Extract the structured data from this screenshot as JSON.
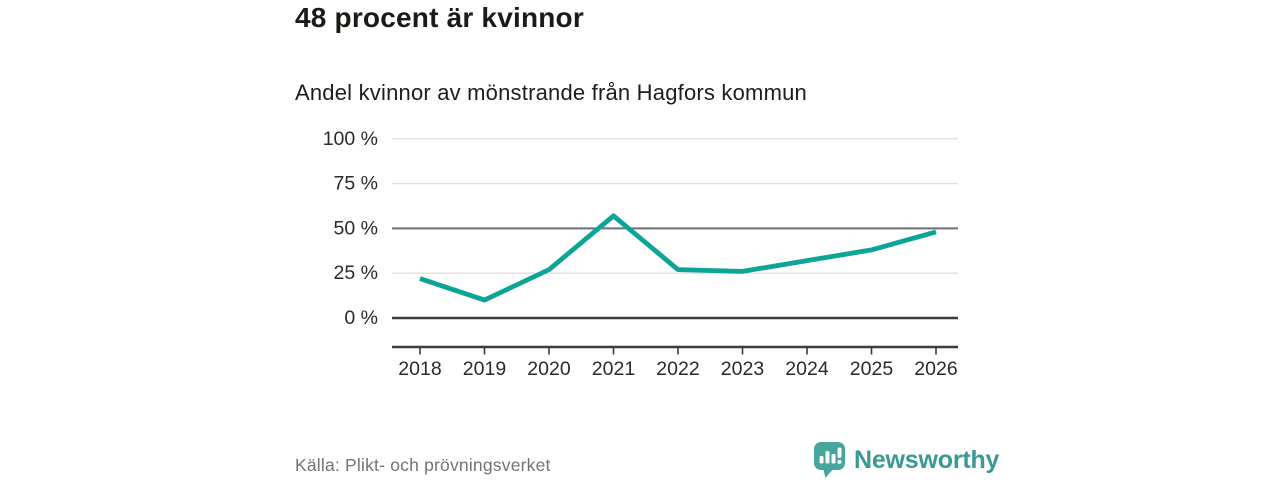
{
  "header": {
    "title": "48 procent är kvinnor",
    "subtitle": "Andel kvinnor av mönstrande från Hagfors kommun"
  },
  "chart_data": {
    "type": "line",
    "title": "48 procent är kvinnor",
    "subtitle": "Andel kvinnor av mönstrande från Hagfors kommun",
    "x": [
      "2018",
      "2019",
      "2020",
      "2021",
      "2022",
      "2023",
      "2024",
      "2025",
      "2026"
    ],
    "series": [
      {
        "name": "Andel kvinnor av mönstrande",
        "values": [
          22,
          10,
          27,
          57,
          27,
          26,
          32,
          38,
          48
        ],
        "color": "#0da498"
      }
    ],
    "unit": "%",
    "ylim": [
      0,
      100
    ],
    "yticks": [
      0,
      25,
      50,
      75,
      100
    ],
    "ytick_suffix": " %",
    "grid": true,
    "legend": "none",
    "emphasized_gridline": 50,
    "baseline_value": 0,
    "colors": {
      "grid_light": "#e0e0e0",
      "grid_emphasis": "#6f6f78",
      "baseline": "#3b3b40",
      "axis": "#3b3b40",
      "tick_label": "#2a2a2a"
    }
  },
  "footer": {
    "source": "Källa: Plikt- och prövningsverket",
    "logo": {
      "label": "Newsworthy",
      "icon": "newsworthy-speech-bubble-bars-icon",
      "icon_color": "#46a69e",
      "text_color": "#3a9992"
    }
  }
}
